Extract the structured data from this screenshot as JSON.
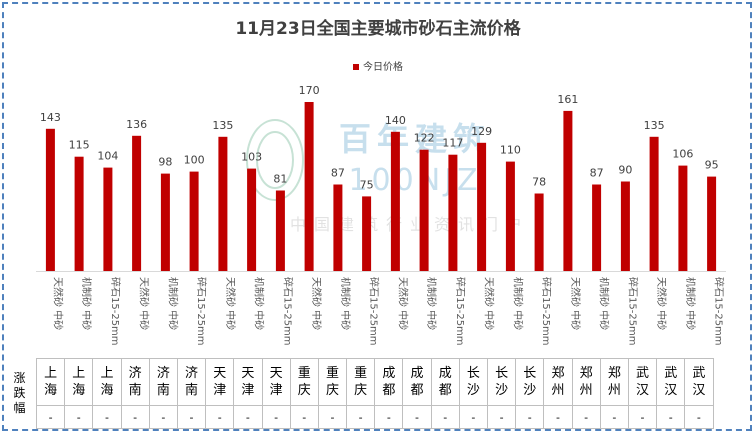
{
  "chart_data": {
    "type": "bar",
    "title": "11月23日全国主要城市砂石主流价格",
    "legend": [
      "今日价格"
    ],
    "legend_position": "top",
    "series": [
      {
        "name": "今日价格",
        "color": "#c00000",
        "values": [
          143,
          115,
          104,
          136,
          98,
          100,
          135,
          103,
          81,
          170,
          87,
          75,
          140,
          122,
          117,
          129,
          110,
          78,
          161,
          87,
          90,
          135,
          106,
          95
        ]
      }
    ],
    "categories": [
      "天然砂 中砂",
      "机制砂 中砂",
      "碎石15-25mm",
      "天然砂 中砂",
      "机制砂 中砂",
      "碎石15-25mm",
      "天然砂 中砂",
      "机制砂 中砂",
      "碎石15-25mm",
      "天然砂 中砂",
      "机制砂 中砂",
      "碎石15-25mm",
      "天然砂 中砂",
      "机制砂 中砂",
      "碎石15-25mm",
      "天然砂 中砂",
      "机制砂 中砂",
      "碎石15-25mm",
      "天然砂 中砂",
      "机制砂 中砂",
      "碎石15-25mm",
      "天然砂 中砂",
      "机制砂 中砂",
      "碎石15-25mm"
    ],
    "ylim": [
      0,
      180
    ],
    "grid": false,
    "table": {
      "row_header": "涨跌幅",
      "cities": [
        "上海",
        "上海",
        "上海",
        "济南",
        "济南",
        "济南",
        "天津",
        "天津",
        "天津",
        "重庆",
        "重庆",
        "重庆",
        "成都",
        "成都",
        "成都",
        "长沙",
        "长沙",
        "长沙",
        "郑州",
        "郑州",
        "郑州",
        "武汉",
        "武汉",
        "武汉"
      ],
      "changes": [
        "-",
        "-",
        "-",
        "-",
        "-",
        "-",
        "-",
        "-",
        "-",
        "-",
        "-",
        "-",
        "-",
        "-",
        "-",
        "-",
        "-",
        "-",
        "-",
        "-",
        "-",
        "-",
        "-",
        "-"
      ]
    }
  },
  "watermark": {
    "text_cn": "百年建筑",
    "text_en": "100NJZ",
    "subtitle": "中国建筑行业资讯门户"
  }
}
